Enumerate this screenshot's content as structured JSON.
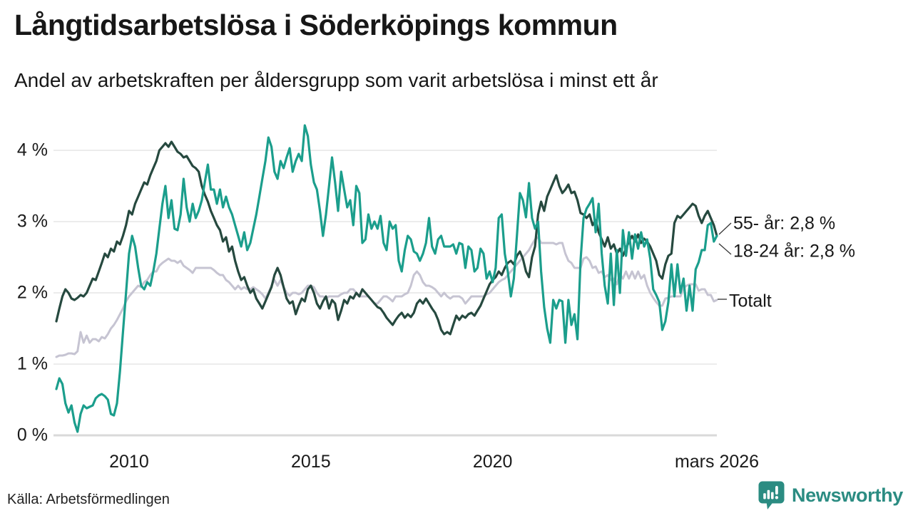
{
  "header": {
    "title": "Långtidsarbetslösa i Söderköpings kommun",
    "subtitle": "Andel av arbetskraften per åldersgrupp som varit arbetslösa i minst ett år"
  },
  "source_text": "Källa: Arbetsförmedlingen",
  "branding": {
    "name": "Newsworthy",
    "color": "#2b8c82",
    "icon": "speech-bubble-bar-chart-icon"
  },
  "colors": {
    "background": "#ffffff",
    "text": "#171717",
    "gridline": "#e6e6e6",
    "baseline": "#d9d9d9",
    "connector": "#333333"
  },
  "chart_data": {
    "type": "line",
    "title": "Långtidsarbetslösa i Söderköpings kommun",
    "subtitle": "Andel av arbetskraften per åldersgrupp som varit arbetslösa i minst ett år",
    "unit": "% av arbetskraften",
    "frequency": "monthly",
    "x_start": "2008-01",
    "x_end": "2026-03",
    "ylim": [
      0,
      4.5
    ],
    "grid": "horizontal",
    "legend_position": "end-of-line",
    "y_ticks": [
      {
        "label": "0 %",
        "value": 0
      },
      {
        "label": "1 %",
        "value": 1
      },
      {
        "label": "2 %",
        "value": 2
      },
      {
        "label": "3 %",
        "value": 3
      },
      {
        "label": "4 %",
        "value": 4
      }
    ],
    "x_ticks": [
      {
        "label": "2010",
        "month_index": 24
      },
      {
        "label": "2015",
        "month_index": 84
      },
      {
        "label": "2020",
        "month_index": 144
      },
      {
        "label": "mars 2026",
        "month_index": 218
      }
    ],
    "series": [
      {
        "name": "Totalt",
        "end_label": "Totalt",
        "latest_value": "1,9 %",
        "color": "#c6c4d2",
        "width": 3,
        "values": [
          1.1,
          1.12,
          1.12,
          1.13,
          1.15,
          1.15,
          1.14,
          1.18,
          1.45,
          1.3,
          1.4,
          1.3,
          1.35,
          1.35,
          1.32,
          1.38,
          1.36,
          1.42,
          1.5,
          1.55,
          1.62,
          1.7,
          1.78,
          1.88,
          1.95,
          2.0,
          2.05,
          2.1,
          2.08,
          2.15,
          2.18,
          2.25,
          2.3,
          2.3,
          2.38,
          2.42,
          2.45,
          2.48,
          2.45,
          2.45,
          2.42,
          2.45,
          2.38,
          2.35,
          2.32,
          2.28,
          2.35,
          2.35,
          2.35,
          2.35,
          2.35,
          2.35,
          2.32,
          2.28,
          2.25,
          2.25,
          2.18,
          2.15,
          2.1,
          2.05,
          2.1,
          2.05,
          2.08,
          2.05,
          2.05,
          2.08,
          2.05,
          2.02,
          1.98,
          1.92,
          2.0,
          2.1,
          2.18,
          2.1,
          2.18,
          2.08,
          2.0,
          1.96,
          2.0,
          2.0,
          1.98,
          2.0,
          2.05,
          2.1,
          2.1,
          2.08,
          2.0,
          1.95,
          1.95,
          1.92,
          1.95,
          1.95,
          1.95,
          1.95,
          1.98,
          2.0,
          2.0,
          2.05,
          2.05,
          2.0,
          1.95,
          1.95,
          1.95,
          1.95,
          1.9,
          1.85,
          1.85,
          1.9,
          1.95,
          1.95,
          1.92,
          1.88,
          1.95,
          1.95,
          1.95,
          1.98,
          2.0,
          2.1,
          2.25,
          2.3,
          2.25,
          2.15,
          2.1,
          2.1,
          2.08,
          2.05,
          2.0,
          1.95,
          2.0,
          1.95,
          1.92,
          1.95,
          1.95,
          1.95,
          1.92,
          1.85,
          1.9,
          1.95,
          1.95,
          1.95,
          1.95,
          1.95,
          1.98,
          2.0,
          2.05,
          2.1,
          2.15,
          2.18,
          2.2,
          2.25,
          2.3,
          2.35,
          2.4,
          2.45,
          2.5,
          2.55,
          2.6,
          2.68,
          2.75,
          2.78,
          2.7,
          2.7,
          2.7,
          2.7,
          2.7,
          2.68,
          2.7,
          2.7,
          2.55,
          2.45,
          2.42,
          2.35,
          2.35,
          2.35,
          2.48,
          2.5,
          2.45,
          2.35,
          2.37,
          2.28,
          2.3,
          2.22,
          2.25,
          2.18,
          2.2,
          2.12,
          2.26,
          2.2,
          2.3,
          2.2,
          2.3,
          2.2,
          2.3,
          2.2,
          2.25,
          2.1,
          2.0,
          1.93,
          1.87,
          1.82,
          1.82,
          1.92,
          1.93,
          1.95,
          1.95,
          1.95,
          1.95,
          2.07,
          2.1,
          2.12,
          2.12,
          2.12,
          2.03,
          2.05,
          2.05,
          1.97,
          1.97,
          1.88,
          1.9
        ]
      },
      {
        "name": "55- år",
        "end_label": "55- år: 2,8 %",
        "latest_value": "2,8 %",
        "color": "#26493f",
        "width": 3.2,
        "values": [
          1.6,
          1.78,
          1.95,
          2.05,
          2.0,
          1.92,
          1.9,
          1.93,
          1.97,
          1.95,
          2.0,
          2.1,
          2.2,
          2.18,
          2.3,
          2.42,
          2.55,
          2.5,
          2.62,
          2.58,
          2.72,
          2.68,
          2.8,
          2.95,
          3.15,
          3.1,
          3.25,
          3.35,
          3.45,
          3.55,
          3.52,
          3.65,
          3.75,
          3.85,
          4.0,
          4.05,
          4.1,
          4.05,
          4.12,
          4.05,
          3.98,
          3.95,
          3.9,
          3.92,
          3.85,
          3.78,
          3.75,
          3.7,
          3.5,
          3.38,
          3.28,
          3.15,
          3.05,
          2.95,
          2.88,
          2.72,
          2.78,
          2.58,
          2.65,
          2.45,
          2.3,
          2.18,
          2.22,
          2.1,
          2.0,
          2.05,
          1.92,
          1.85,
          1.78,
          1.88,
          1.98,
          2.08,
          2.25,
          2.35,
          2.25,
          2.08,
          1.92,
          1.85,
          1.88,
          1.7,
          1.82,
          1.92,
          1.88,
          2.05,
          2.1,
          2.0,
          1.85,
          1.78,
          1.88,
          1.95,
          1.78,
          1.9,
          1.85,
          1.62,
          1.75,
          1.9,
          1.85,
          1.95,
          1.92,
          2.0,
          1.95,
          2.05,
          2.0,
          1.95,
          1.9,
          1.85,
          1.8,
          1.78,
          1.72,
          1.65,
          1.6,
          1.55,
          1.62,
          1.68,
          1.72,
          1.65,
          1.7,
          1.66,
          1.72,
          1.85,
          1.9,
          1.85,
          1.92,
          1.85,
          1.78,
          1.72,
          1.62,
          1.48,
          1.42,
          1.45,
          1.42,
          1.55,
          1.68,
          1.62,
          1.68,
          1.65,
          1.7,
          1.72,
          1.68,
          1.75,
          1.82,
          1.92,
          2.02,
          2.12,
          2.18,
          2.22,
          2.3,
          2.25,
          2.35,
          2.42,
          2.45,
          2.4,
          2.52,
          2.58,
          2.48,
          2.3,
          2.22,
          2.5,
          2.65,
          3.1,
          3.28,
          3.15,
          3.35,
          3.45,
          3.55,
          3.65,
          3.5,
          3.4,
          3.45,
          3.52,
          3.4,
          3.42,
          3.3,
          3.12,
          3.1,
          3.05,
          3.1,
          2.95,
          3.02,
          2.85,
          2.75,
          2.65,
          2.78,
          2.62,
          2.68,
          2.55,
          2.62,
          2.52,
          2.62,
          2.72,
          2.8,
          2.72,
          2.82,
          2.7,
          2.76,
          2.72,
          2.65,
          2.55,
          2.45,
          2.25,
          2.2,
          2.4,
          2.52,
          2.55,
          2.98,
          3.08,
          3.05,
          3.1,
          3.15,
          3.2,
          3.25,
          3.22,
          3.08,
          2.98,
          3.08,
          3.15,
          3.05,
          2.95,
          2.8
        ]
      },
      {
        "name": "18-24 år",
        "end_label": "18-24 år: 2,8 %",
        "latest_value": "2,8 %",
        "color": "#1b9e8c",
        "width": 3.2,
        "values": [
          0.65,
          0.8,
          0.72,
          0.45,
          0.32,
          0.42,
          0.18,
          0.05,
          0.3,
          0.42,
          0.38,
          0.4,
          0.42,
          0.52,
          0.56,
          0.58,
          0.55,
          0.5,
          0.3,
          0.28,
          0.45,
          0.9,
          1.45,
          2.0,
          2.55,
          2.8,
          2.65,
          2.35,
          2.1,
          2.05,
          2.15,
          2.1,
          2.3,
          2.55,
          2.9,
          3.25,
          3.5,
          3.05,
          3.3,
          2.9,
          2.88,
          3.1,
          3.6,
          3.2,
          3.0,
          3.25,
          3.05,
          3.15,
          3.3,
          3.55,
          3.8,
          3.45,
          3.45,
          3.25,
          3.45,
          3.2,
          3.35,
          3.2,
          3.1,
          2.95,
          2.8,
          2.65,
          2.85,
          2.6,
          2.7,
          2.9,
          3.1,
          3.35,
          3.6,
          3.85,
          4.18,
          4.05,
          3.7,
          3.6,
          3.85,
          3.75,
          3.9,
          4.03,
          3.7,
          3.85,
          3.95,
          3.85,
          4.35,
          4.2,
          3.8,
          3.55,
          3.45,
          3.15,
          2.8,
          3.1,
          3.5,
          3.9,
          3.55,
          3.15,
          3.7,
          3.45,
          3.2,
          3.3,
          2.95,
          3.5,
          3.4,
          2.7,
          2.75,
          3.1,
          2.9,
          3.0,
          2.9,
          3.08,
          2.7,
          2.6,
          3.0,
          2.9,
          2.95,
          2.45,
          2.3,
          2.6,
          2.8,
          2.75,
          2.58,
          2.55,
          2.45,
          2.55,
          2.7,
          3.05,
          2.65,
          2.55,
          2.75,
          2.8,
          2.65,
          2.65,
          2.65,
          2.68,
          2.55,
          2.7,
          2.68,
          2.35,
          2.65,
          2.6,
          2.3,
          2.35,
          2.62,
          2.55,
          2.2,
          2.3,
          2.15,
          2.35,
          3.05,
          3.1,
          2.55,
          2.3,
          1.95,
          2.2,
          2.8,
          3.4,
          3.3,
          3.06,
          3.54,
          3.05,
          2.9,
          3.0,
          2.3,
          1.8,
          1.5,
          1.3,
          1.9,
          1.78,
          1.9,
          1.88,
          1.3,
          1.9,
          1.55,
          1.7,
          1.35,
          2.45,
          3.05,
          3.18,
          3.25,
          3.33,
          2.85,
          3.25,
          2.55,
          2.1,
          1.85,
          2.55,
          1.83,
          2.6,
          2.0,
          2.88,
          2.52,
          2.85,
          2.48,
          2.82,
          2.62,
          2.85,
          2.65,
          2.75,
          2.48,
          2.05,
          1.97,
          1.87,
          1.48,
          1.6,
          1.87,
          2.4,
          1.95,
          2.4,
          2.0,
          2.2,
          1.75,
          2.1,
          1.75,
          2.33,
          2.43,
          2.6,
          2.6,
          2.95,
          2.98,
          2.72,
          2.8
        ]
      }
    ]
  }
}
